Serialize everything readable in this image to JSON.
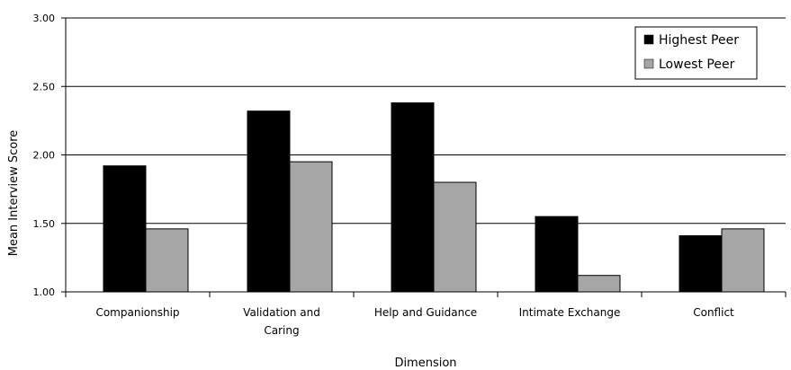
{
  "chart_data": {
    "type": "bar",
    "title": "",
    "xlabel": "Dimension",
    "ylabel": "Mean Interview Score",
    "categories": [
      [
        "Companionship"
      ],
      [
        "Validation and",
        "Caring"
      ],
      [
        "Help and Guidance"
      ],
      [
        "Intimate Exchange"
      ],
      [
        "Conflict"
      ]
    ],
    "series": [
      {
        "name": "Highest Peer",
        "color": "#000000",
        "values": [
          1.92,
          2.32,
          2.38,
          1.55,
          1.41
        ]
      },
      {
        "name": "Lowest Peer",
        "color": "#a6a6a6",
        "values": [
          1.46,
          1.95,
          1.8,
          1.12,
          1.46
        ]
      }
    ],
    "ylim": [
      1.0,
      3.0
    ],
    "yticks": [
      "1.00",
      "1.50",
      "2.00",
      "2.50",
      "3.00"
    ],
    "grid": true,
    "legend_position": "top-right"
  }
}
